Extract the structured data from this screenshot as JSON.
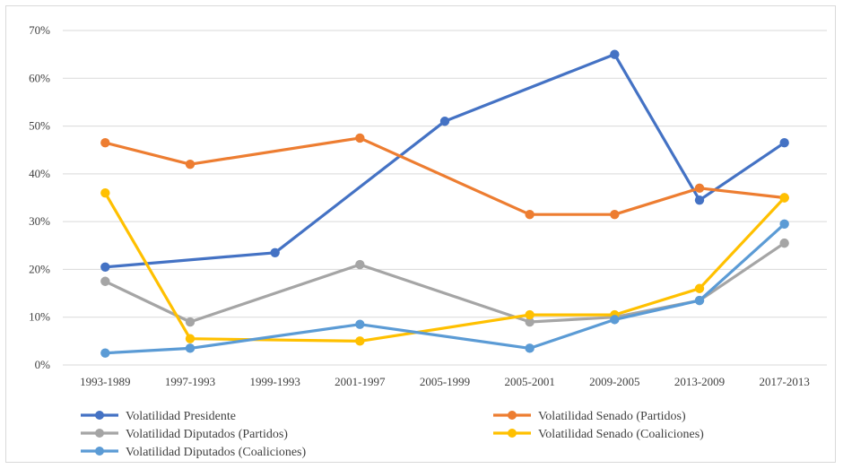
{
  "chart_data": {
    "type": "line",
    "categories": [
      "1993-1989",
      "1997-1993",
      "1999-1993",
      "2001-1997",
      "2005-1999",
      "2005-2001",
      "2009-2005",
      "2013-2009",
      "2017-2013"
    ],
    "y_ticks": [
      "0%",
      "10%",
      "20%",
      "30%",
      "40%",
      "50%",
      "60%",
      "70%"
    ],
    "ylim": [
      0,
      70
    ],
    "grid": "horizontal",
    "legend_position": "bottom",
    "series": [
      {
        "name": "Volatilidad Presidente",
        "color": "#4472C4",
        "values": [
          20.5,
          null,
          23.5,
          null,
          51.0,
          null,
          65.0,
          34.5,
          46.5
        ]
      },
      {
        "name": "Volatilidad Senado (Partidos)",
        "color": "#ED7D31",
        "values": [
          46.5,
          42.0,
          null,
          47.5,
          null,
          31.5,
          31.5,
          37.0,
          35.0
        ]
      },
      {
        "name": "Volatilidad Diputados (Partidos)",
        "color": "#A5A5A5",
        "values": [
          17.5,
          9.0,
          null,
          21.0,
          null,
          9.0,
          10.0,
          13.5,
          25.5
        ]
      },
      {
        "name": "Volatilidad Senado (Coaliciones)",
        "color": "#FFC000",
        "values": [
          36.0,
          5.5,
          null,
          5.0,
          null,
          10.5,
          10.5,
          16.0,
          35.0
        ]
      },
      {
        "name": "Volatilidad Diputados (Coaliciones)",
        "color": "#5B9BD5",
        "values": [
          2.5,
          3.5,
          null,
          8.5,
          null,
          3.5,
          9.5,
          13.5,
          29.5
        ]
      }
    ]
  }
}
